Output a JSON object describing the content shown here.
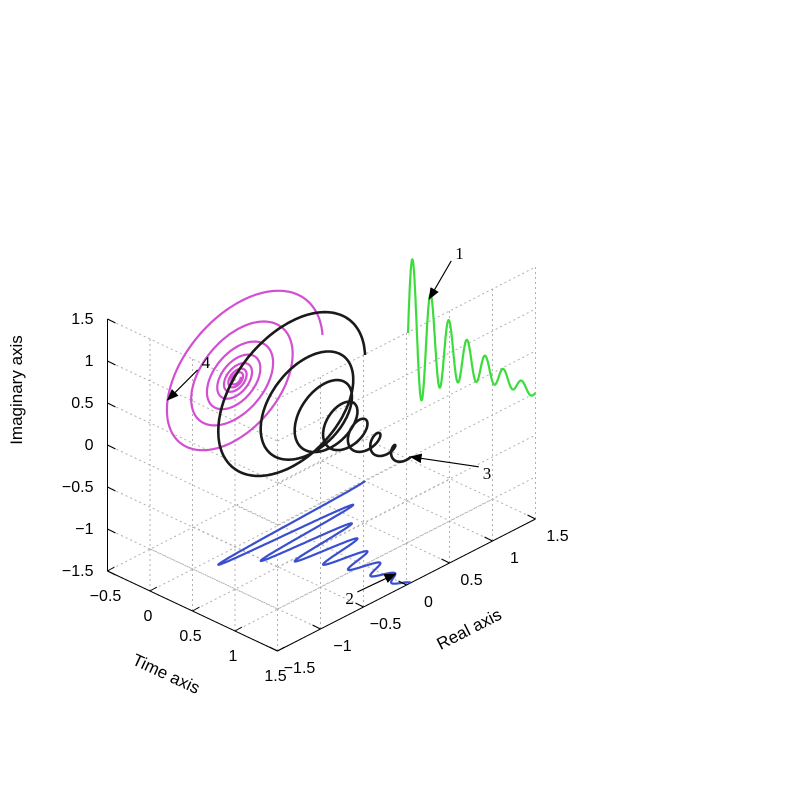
{
  "chart_data": {
    "type": "line",
    "projection": "3d",
    "xlabel": "Time axis",
    "ylabel": "Real axis",
    "zlabel": "Imaginary axis",
    "xlim": [
      -0.5,
      1.5
    ],
    "ylim": [
      -1.5,
      1.5
    ],
    "zlim": [
      -1.5,
      1.5
    ],
    "x_ticks": [
      "−0.5",
      "0",
      "0.5",
      "1",
      "1.5"
    ],
    "y_ticks": [
      "−1.5",
      "−1",
      "−0.5",
      "0",
      "0.5",
      "1",
      "1.5"
    ],
    "z_ticks": [
      "−1.5",
      "−1",
      "−0.5",
      "0",
      "0.5",
      "1",
      "1.5"
    ],
    "grid": true,
    "time_range": [
      0,
      1.5
    ],
    "decay_rate": 2.0,
    "frequency_cycles": 7,
    "series": [
      {
        "key": "1",
        "projection_plane": "time-imaginary",
        "color": "#3ddc3d"
      },
      {
        "key": "2",
        "projection_plane": "time-real",
        "color": "#3a4fcf"
      },
      {
        "key": "3",
        "projection_plane": "3d",
        "color": "#1a1a1a"
      },
      {
        "key": "4",
        "projection_plane": "real-imaginary",
        "color": "#d24fd2"
      }
    ],
    "annotations": [
      {
        "label": "1",
        "series": "1"
      },
      {
        "label": "2",
        "series": "2"
      },
      {
        "label": "3",
        "series": "3"
      },
      {
        "label": "4",
        "series": "4"
      }
    ]
  }
}
